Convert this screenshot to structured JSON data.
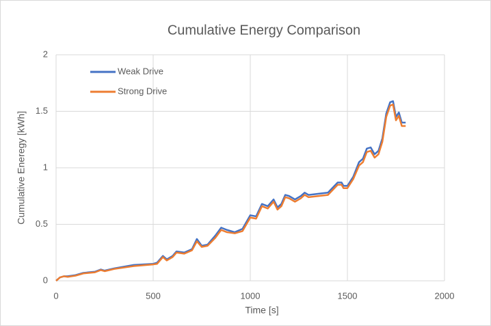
{
  "chart_data": {
    "type": "line",
    "title": "Cumulative Energy Comparison",
    "x_label": "Time [s]",
    "y_label": "Cumulative Eneregy [kWh]",
    "x": [
      0,
      20,
      40,
      60,
      100,
      140,
      200,
      230,
      250,
      300,
      400,
      500,
      520,
      550,
      570,
      600,
      620,
      660,
      700,
      725,
      750,
      780,
      820,
      850,
      880,
      920,
      960,
      1000,
      1030,
      1060,
      1090,
      1120,
      1140,
      1160,
      1180,
      1200,
      1230,
      1260,
      1280,
      1300,
      1400,
      1450,
      1470,
      1480,
      1500,
      1530,
      1560,
      1580,
      1600,
      1620,
      1640,
      1660,
      1680,
      1700,
      1720,
      1735,
      1750,
      1765,
      1780,
      1800
    ],
    "series": [
      {
        "name": "Weak Drive",
        "color": "#4472c4",
        "values": [
          0,
          0.03,
          0.04,
          0.04,
          0.05,
          0.07,
          0.08,
          0.1,
          0.09,
          0.11,
          0.14,
          0.15,
          0.16,
          0.22,
          0.19,
          0.22,
          0.26,
          0.25,
          0.28,
          0.37,
          0.31,
          0.32,
          0.4,
          0.47,
          0.45,
          0.43,
          0.46,
          0.58,
          0.57,
          0.68,
          0.66,
          0.72,
          0.65,
          0.68,
          0.76,
          0.75,
          0.72,
          0.75,
          0.78,
          0.76,
          0.78,
          0.87,
          0.87,
          0.84,
          0.84,
          0.92,
          1.05,
          1.08,
          1.17,
          1.18,
          1.12,
          1.15,
          1.26,
          1.48,
          1.58,
          1.59,
          1.45,
          1.49,
          1.4,
          1.4
        ]
      },
      {
        "name": "Strong Drive",
        "color": "#ed7d31",
        "values": [
          0,
          0.03,
          0.04,
          0.035,
          0.045,
          0.065,
          0.075,
          0.095,
          0.085,
          0.105,
          0.13,
          0.145,
          0.15,
          0.21,
          0.18,
          0.21,
          0.25,
          0.24,
          0.27,
          0.35,
          0.3,
          0.31,
          0.38,
          0.45,
          0.43,
          0.42,
          0.44,
          0.56,
          0.55,
          0.66,
          0.64,
          0.7,
          0.63,
          0.66,
          0.74,
          0.73,
          0.7,
          0.73,
          0.76,
          0.74,
          0.76,
          0.85,
          0.85,
          0.82,
          0.82,
          0.9,
          1.02,
          1.05,
          1.14,
          1.15,
          1.09,
          1.12,
          1.23,
          1.45,
          1.55,
          1.56,
          1.42,
          1.46,
          1.37,
          1.37
        ]
      }
    ],
    "xlim": [
      0,
      2000
    ],
    "xticks": [
      0,
      500,
      1000,
      1500,
      2000
    ],
    "ylim": [
      0,
      2
    ],
    "yticks": [
      0,
      0.5,
      1,
      1.5,
      2
    ],
    "grid": true,
    "legend": "top-left"
  }
}
